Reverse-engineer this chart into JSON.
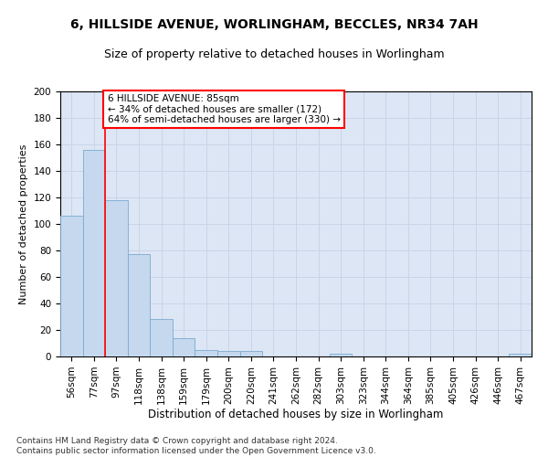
{
  "title1": "6, HILLSIDE AVENUE, WORLINGHAM, BECCLES, NR34 7AH",
  "title2": "Size of property relative to detached houses in Worlingham",
  "xlabel": "Distribution of detached houses by size in Worlingham",
  "ylabel": "Number of detached properties",
  "categories": [
    "56sqm",
    "77sqm",
    "97sqm",
    "118sqm",
    "138sqm",
    "159sqm",
    "179sqm",
    "200sqm",
    "220sqm",
    "241sqm",
    "262sqm",
    "282sqm",
    "303sqm",
    "323sqm",
    "344sqm",
    "364sqm",
    "385sqm",
    "405sqm",
    "426sqm",
    "446sqm",
    "467sqm"
  ],
  "values": [
    106,
    156,
    118,
    77,
    28,
    14,
    5,
    4,
    4,
    0,
    0,
    0,
    2,
    0,
    0,
    0,
    0,
    0,
    0,
    0,
    2
  ],
  "bar_color": "#c5d8ee",
  "bar_edge_color": "#7aaad0",
  "annotation_text": "6 HILLSIDE AVENUE: 85sqm\n← 34% of detached houses are smaller (172)\n64% of semi-detached houses are larger (330) →",
  "annotation_box_color": "white",
  "annotation_box_edge_color": "red",
  "vline_color": "red",
  "ylim_max": 200,
  "yticks": [
    0,
    20,
    40,
    60,
    80,
    100,
    120,
    140,
    160,
    180,
    200
  ],
  "grid_color": "#c8d4e8",
  "background_color": "#dde6f4",
  "footer1": "Contains HM Land Registry data © Crown copyright and database right 2024.",
  "footer2": "Contains public sector information licensed under the Open Government Licence v3.0.",
  "title1_fontsize": 10,
  "title2_fontsize": 9,
  "xlabel_fontsize": 8.5,
  "ylabel_fontsize": 8,
  "tick_fontsize": 7.5,
  "annotation_fontsize": 7.5,
  "footer_fontsize": 6.5,
  "vline_x": 1.5
}
